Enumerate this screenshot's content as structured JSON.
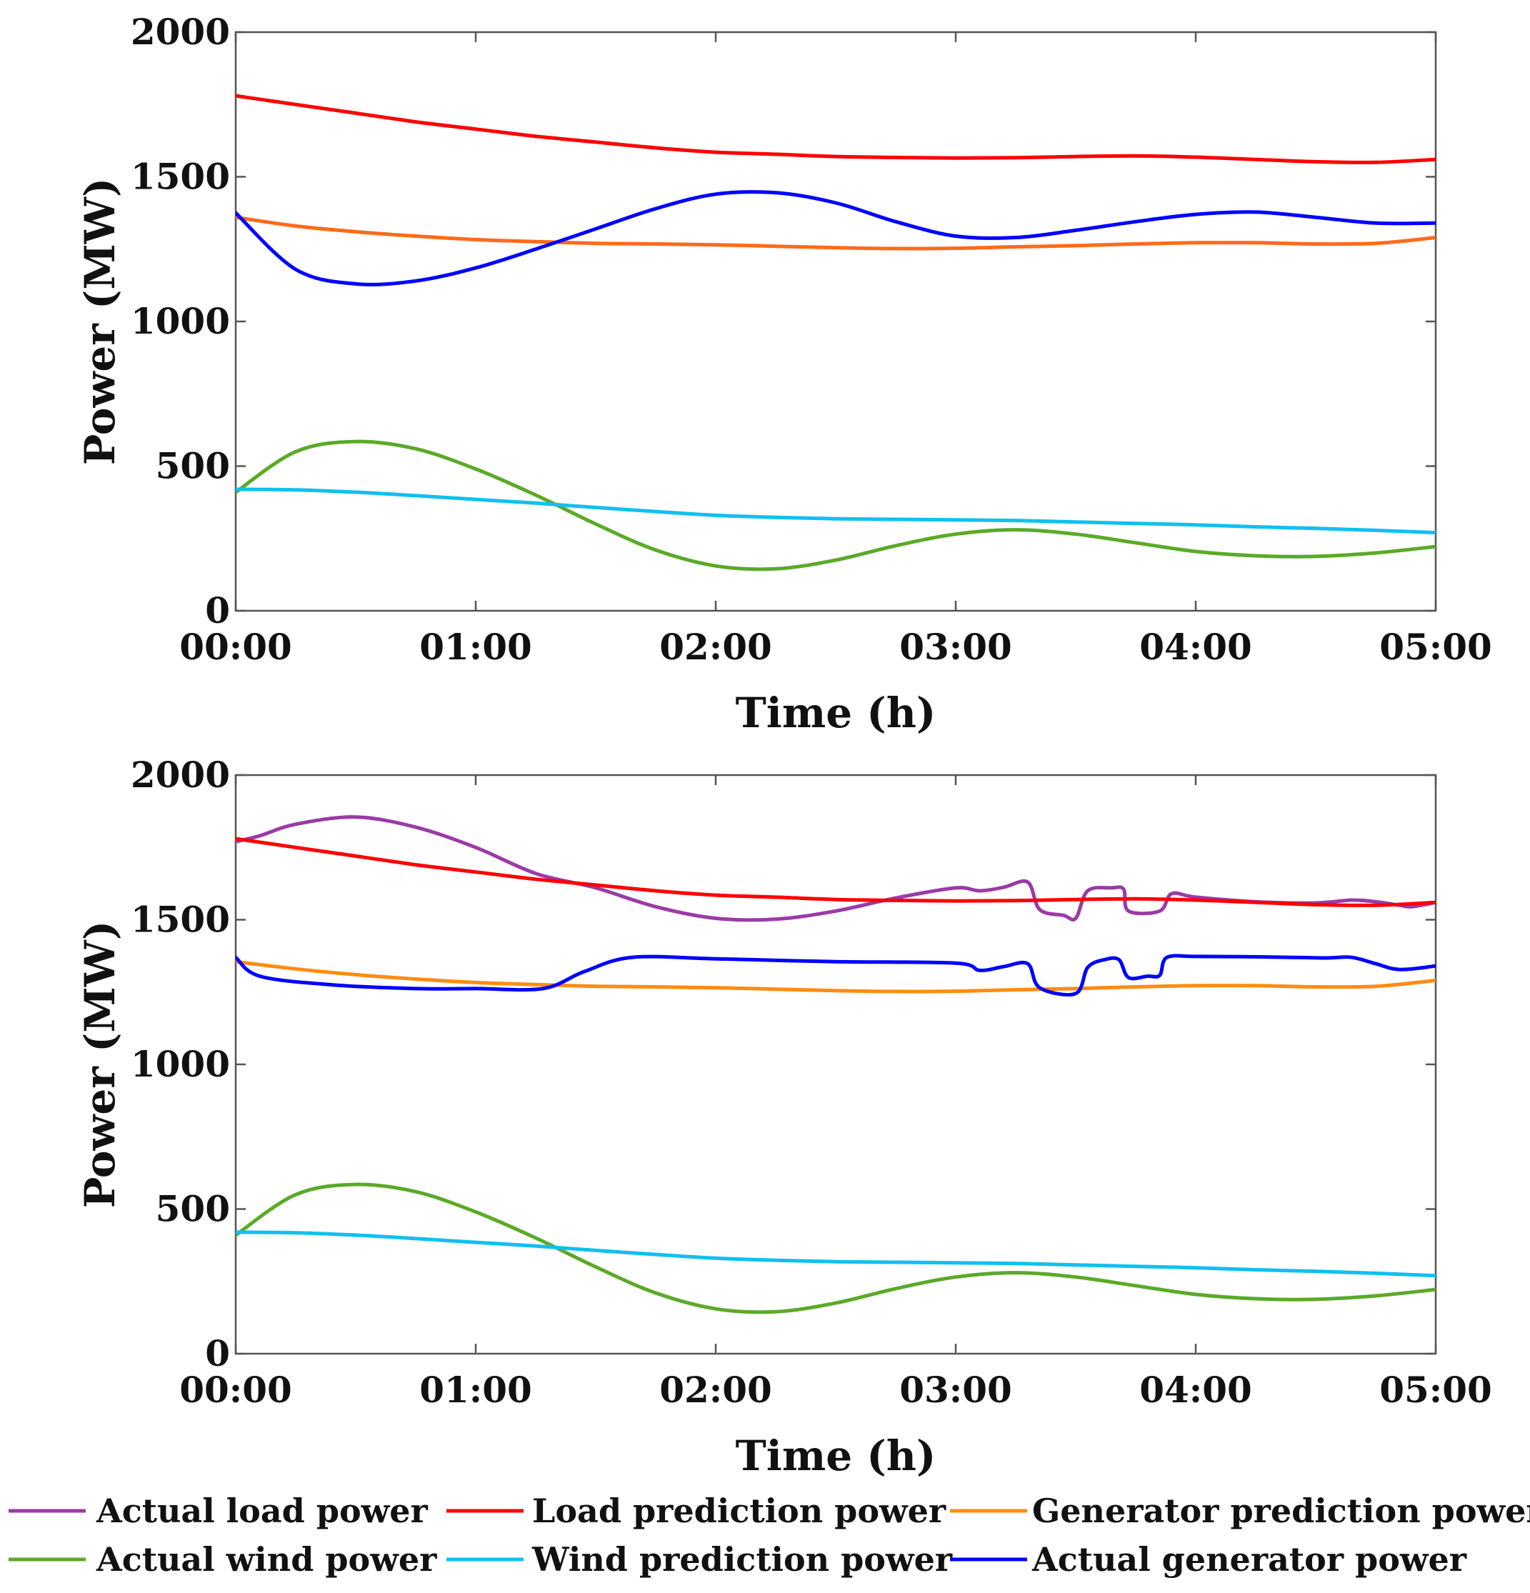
{
  "chart_data": [
    {
      "type": "line",
      "panel": "top",
      "xlabel": "Time (h)",
      "ylabel": "Power (MW)",
      "x_tick_labels": [
        "00:00",
        "01:00",
        "02:00",
        "03:00",
        "04:00",
        "05:00"
      ],
      "y_tick_labels": [
        "0",
        "500",
        "1000",
        "1500",
        "2000"
      ],
      "xlim": [
        0,
        5
      ],
      "ylim": [
        0,
        2000
      ],
      "x_unit": "h",
      "grid": false,
      "series": [
        {
          "name": "Load prediction power",
          "color": "#ff0000",
          "x": [
            0,
            0.25,
            0.5,
            0.75,
            1,
            1.25,
            1.5,
            1.75,
            2,
            2.25,
            2.5,
            2.75,
            3,
            3.25,
            3.5,
            3.75,
            4,
            4.25,
            4.5,
            4.75,
            5
          ],
          "y": [
            1780,
            1750,
            1720,
            1690,
            1665,
            1640,
            1620,
            1600,
            1585,
            1578,
            1570,
            1567,
            1565,
            1566,
            1570,
            1572,
            1568,
            1560,
            1552,
            1550,
            1560
          ]
        },
        {
          "name": "Generator prediction power",
          "color": "#ff6a1a",
          "x": [
            0,
            0.25,
            0.5,
            0.75,
            1,
            1.25,
            1.5,
            1.75,
            2,
            2.25,
            2.5,
            2.75,
            3,
            3.25,
            3.5,
            3.75,
            4,
            4.25,
            4.5,
            4.75,
            5
          ],
          "y": [
            1360,
            1330,
            1310,
            1295,
            1283,
            1276,
            1270,
            1268,
            1265,
            1260,
            1255,
            1252,
            1253,
            1258,
            1262,
            1268,
            1272,
            1272,
            1268,
            1270,
            1290
          ]
        },
        {
          "name": "Actual generator power",
          "color": "#0000ff",
          "x": [
            0,
            0.25,
            0.5,
            0.75,
            1,
            1.25,
            1.5,
            1.75,
            2,
            2.25,
            2.5,
            2.75,
            3,
            3.25,
            3.5,
            3.75,
            4,
            4.25,
            4.5,
            4.75,
            5
          ],
          "y": [
            1375,
            1180,
            1130,
            1140,
            1185,
            1250,
            1320,
            1390,
            1440,
            1445,
            1410,
            1345,
            1295,
            1290,
            1315,
            1345,
            1370,
            1378,
            1360,
            1340,
            1340
          ]
        },
        {
          "name": "Actual wind power",
          "color": "#5aaa28",
          "x": [
            0,
            0.25,
            0.5,
            0.75,
            1,
            1.25,
            1.5,
            1.75,
            2,
            2.25,
            2.5,
            2.75,
            3,
            3.25,
            3.5,
            3.75,
            4,
            4.25,
            4.5,
            4.75,
            5
          ],
          "y": [
            410,
            550,
            585,
            560,
            490,
            400,
            300,
            210,
            155,
            145,
            175,
            225,
            265,
            280,
            265,
            235,
            205,
            190,
            188,
            200,
            222
          ]
        },
        {
          "name": "Wind prediction power",
          "color": "#10c0f0",
          "x": [
            0,
            0.25,
            0.5,
            0.75,
            1,
            1.25,
            1.5,
            1.75,
            2,
            2.25,
            2.5,
            2.75,
            3,
            3.25,
            3.5,
            3.75,
            4,
            4.25,
            4.5,
            4.75,
            5
          ],
          "y": [
            420,
            418,
            410,
            398,
            385,
            372,
            357,
            343,
            330,
            323,
            318,
            316,
            314,
            312,
            307,
            302,
            297,
            290,
            285,
            278,
            270
          ]
        }
      ]
    },
    {
      "type": "line",
      "panel": "bottom",
      "xlabel": "Time (h)",
      "ylabel": "Power (MW)",
      "x_tick_labels": [
        "00:00",
        "01:00",
        "02:00",
        "03:00",
        "04:00",
        "05:00"
      ],
      "y_tick_labels": [
        "0",
        "500",
        "1000",
        "1500",
        "2000"
      ],
      "xlim": [
        0,
        5
      ],
      "ylim": [
        0,
        2000
      ],
      "x_unit": "h",
      "grid": false,
      "series": [
        {
          "name": "Actual load power",
          "color": "#9b3aa6",
          "x": [
            0,
            0.1,
            0.25,
            0.5,
            0.75,
            1,
            1.25,
            1.5,
            1.75,
            2,
            2.25,
            2.5,
            2.75,
            3,
            3.1,
            3.2,
            3.3,
            3.35,
            3.45,
            3.5,
            3.55,
            3.65,
            3.7,
            3.72,
            3.85,
            3.9,
            4,
            4.25,
            4.5,
            4.65,
            4.75,
            4.85,
            4.9,
            5
          ],
          "y": [
            1770,
            1790,
            1830,
            1855,
            1820,
            1750,
            1660,
            1610,
            1545,
            1505,
            1502,
            1530,
            1575,
            1610,
            1600,
            1612,
            1630,
            1535,
            1515,
            1505,
            1600,
            1610,
            1605,
            1530,
            1530,
            1590,
            1578,
            1562,
            1558,
            1568,
            1562,
            1550,
            1545,
            1560
          ]
        },
        {
          "name": "Load prediction power",
          "color": "#ff0000",
          "x": [
            0,
            0.25,
            0.5,
            0.75,
            1,
            1.25,
            1.5,
            1.75,
            2,
            2.25,
            2.5,
            2.75,
            3,
            3.25,
            3.5,
            3.75,
            4,
            4.25,
            4.5,
            4.75,
            5
          ],
          "y": [
            1780,
            1750,
            1720,
            1690,
            1665,
            1640,
            1620,
            1600,
            1585,
            1578,
            1570,
            1567,
            1565,
            1566,
            1570,
            1572,
            1568,
            1560,
            1552,
            1550,
            1560
          ]
        },
        {
          "name": "Generator prediction power",
          "color": "#ff8c10",
          "x": [
            0,
            0.25,
            0.5,
            0.75,
            1,
            1.25,
            1.5,
            1.75,
            2,
            2.25,
            2.5,
            2.75,
            3,
            3.25,
            3.5,
            3.75,
            4,
            4.25,
            4.5,
            4.75,
            5
          ],
          "y": [
            1355,
            1330,
            1310,
            1295,
            1283,
            1276,
            1270,
            1268,
            1265,
            1260,
            1255,
            1252,
            1253,
            1258,
            1262,
            1268,
            1272,
            1272,
            1268,
            1270,
            1290
          ]
        },
        {
          "name": "Actual generator power",
          "color": "#0000ff",
          "x": [
            0,
            0.1,
            0.4,
            0.75,
            1.0,
            1.28,
            1.45,
            1.65,
            2.0,
            2.5,
            3.0,
            3.1,
            3.2,
            3.3,
            3.35,
            3.5,
            3.55,
            3.62,
            3.68,
            3.72,
            3.8,
            3.85,
            3.88,
            4.0,
            4.2,
            4.4,
            4.55,
            4.65,
            4.75,
            4.85,
            5
          ],
          "y": [
            1370,
            1305,
            1275,
            1262,
            1262,
            1262,
            1320,
            1370,
            1365,
            1355,
            1350,
            1325,
            1338,
            1348,
            1265,
            1245,
            1335,
            1362,
            1362,
            1300,
            1305,
            1308,
            1370,
            1373,
            1372,
            1370,
            1368,
            1370,
            1348,
            1328,
            1340
          ]
        },
        {
          "name": "Actual wind power",
          "color": "#5aaa28",
          "x": [
            0,
            0.25,
            0.5,
            0.75,
            1,
            1.25,
            1.5,
            1.75,
            2,
            2.25,
            2.5,
            2.75,
            3,
            3.25,
            3.5,
            3.75,
            4,
            4.25,
            4.5,
            4.75,
            5
          ],
          "y": [
            410,
            550,
            585,
            560,
            490,
            400,
            300,
            210,
            155,
            145,
            175,
            225,
            265,
            280,
            265,
            235,
            205,
            190,
            188,
            200,
            222
          ]
        },
        {
          "name": "Wind prediction power",
          "color": "#10c0f0",
          "x": [
            0,
            0.25,
            0.5,
            0.75,
            1,
            1.25,
            1.5,
            1.75,
            2,
            2.25,
            2.5,
            2.75,
            3,
            3.25,
            3.5,
            3.75,
            4,
            4.25,
            4.5,
            4.75,
            5
          ],
          "y": [
            420,
            418,
            410,
            398,
            385,
            372,
            357,
            343,
            330,
            323,
            318,
            316,
            314,
            312,
            307,
            302,
            297,
            290,
            285,
            278,
            270
          ]
        }
      ]
    }
  ],
  "legend": {
    "placement": "bottom",
    "entries": [
      {
        "label": "Actual load power",
        "color": "#9b3aa6"
      },
      {
        "label": "Load prediction power",
        "color": "#ff0000"
      },
      {
        "label": "Generator prediction power",
        "color": "#ff8c10"
      },
      {
        "label": "Actual wind power",
        "color": "#5aaa28"
      },
      {
        "label": "Wind prediction power",
        "color": "#10c0f0"
      },
      {
        "label": "Actual generator power",
        "color": "#0000ff"
      }
    ]
  }
}
